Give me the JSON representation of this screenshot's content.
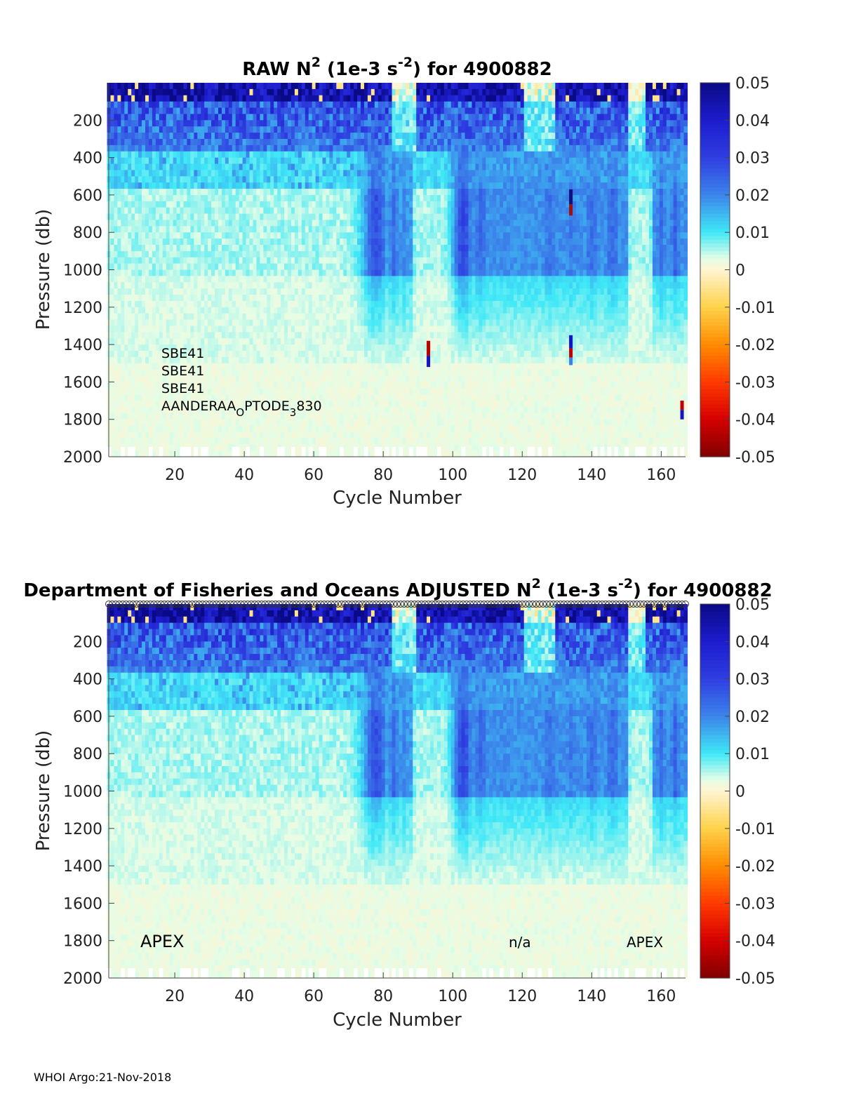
{
  "colormap": {
    "stops": [
      {
        "v": -0.05,
        "c": "#800000"
      },
      {
        "v": -0.04,
        "c": "#d50000"
      },
      {
        "v": -0.03,
        "c": "#ff3a00"
      },
      {
        "v": -0.02,
        "c": "#ff8c00"
      },
      {
        "v": -0.01,
        "c": "#ffd24a"
      },
      {
        "v": 0.0,
        "c": "#fff4d2"
      },
      {
        "v": 0.003,
        "c": "#e4fde6"
      },
      {
        "v": 0.01,
        "c": "#3fe8f7"
      },
      {
        "v": 0.02,
        "c": "#3c84ea"
      },
      {
        "v": 0.03,
        "c": "#2f3ee0"
      },
      {
        "v": 0.04,
        "c": "#1d1ccd"
      },
      {
        "v": 0.05,
        "c": "#0a0a86"
      }
    ]
  },
  "chart_data": [
    {
      "type": "heatmap",
      "title": {
        "prefix": "RAW N",
        "sup1": "2",
        "mid": " (1e-3 s",
        "sup2": "-2",
        "suffix": ") for 4900882"
      },
      "xlabel": "Cycle Number",
      "ylabel": "Pressure (db)",
      "xlim": [
        1,
        167
      ],
      "ylim": [
        2000,
        0
      ],
      "xticks": [
        20,
        40,
        60,
        80,
        100,
        120,
        140,
        160
      ],
      "yticks": [
        200,
        400,
        600,
        800,
        1000,
        1200,
        1400,
        1600,
        1800,
        2000
      ],
      "colorbar": {
        "clim": [
          -0.05,
          0.05
        ],
        "ticks": [
          "0.05",
          "0.04",
          "0.03",
          "0.02",
          "0.01",
          "0",
          "-0.01",
          "-0.02",
          "-0.03",
          "-0.04",
          "-0.05"
        ]
      },
      "annotations": [
        {
          "text": "SBE41"
        },
        {
          "text": "SBE41"
        },
        {
          "text": "SBE41"
        },
        {
          "text": "AANDERAA",
          "sub1": "O",
          "mid": "PTODE",
          "sub2": "3",
          "tail": "830"
        }
      ],
      "anomalies": [
        {
          "cycle": 93,
          "p_top": 1380,
          "p_bot": 1460,
          "color": "#c00000"
        },
        {
          "cycle": 93,
          "p_top": 1460,
          "p_bot": 1520,
          "color": "#1515c8"
        },
        {
          "cycle": 134,
          "p_top": 1350,
          "p_bot": 1420,
          "color": "#1515c8"
        },
        {
          "cycle": 134,
          "p_top": 1420,
          "p_bot": 1470,
          "color": "#c00000"
        },
        {
          "cycle": 134,
          "p_top": 1470,
          "p_bot": 1510,
          "color": "#4080e0"
        },
        {
          "cycle": 134,
          "p_top": 570,
          "p_bot": 650,
          "color": "#101080"
        },
        {
          "cycle": 134,
          "p_top": 650,
          "p_bot": 710,
          "color": "#a01010"
        },
        {
          "cycle": 166,
          "p_top": 1700,
          "p_bot": 1750,
          "color": "#c00000"
        },
        {
          "cycle": 166,
          "p_top": 1750,
          "p_bot": 1800,
          "color": "#1515c8"
        }
      ]
    },
    {
      "type": "heatmap",
      "title": {
        "prefix": "Department of Fisheries and Oceans  ADJUSTED N",
        "sup1": "2",
        "mid": " (1e-3 s",
        "sup2": "-2",
        "suffix": ") for 4900882"
      },
      "xlabel": "Cycle Number",
      "ylabel": "Pressure (db)",
      "xlim": [
        1,
        167
      ],
      "ylim": [
        2000,
        0
      ],
      "xticks": [
        20,
        40,
        60,
        80,
        100,
        120,
        140,
        160
      ],
      "yticks": [
        200,
        400,
        600,
        800,
        1000,
        1200,
        1400,
        1600,
        1800,
        2000
      ],
      "colorbar": {
        "clim": [
          -0.05,
          0.05
        ],
        "ticks": [
          "0.05",
          "0.04",
          "0.03",
          "0.02",
          "0.01",
          "0",
          "-0.01",
          "-0.02",
          "-0.03",
          "-0.04",
          "-0.05"
        ]
      },
      "annotations": [
        {
          "text": "APEX"
        },
        {
          "text": "n/a"
        },
        {
          "text": "APEX"
        }
      ],
      "anomalies": []
    }
  ],
  "footer": "WHOI Argo:21-Nov-2018"
}
